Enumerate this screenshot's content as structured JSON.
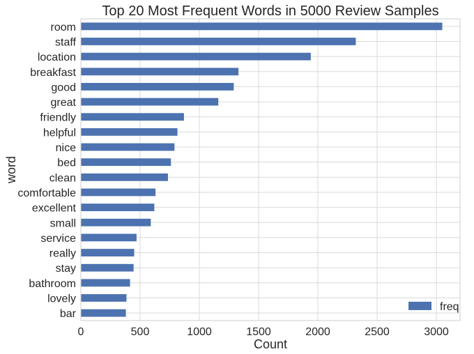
{
  "chart_data": {
    "type": "bar",
    "orientation": "horizontal",
    "title": "Top 20 Most Frequent Words in 5000 Review Samples",
    "xlabel": "Count",
    "ylabel": "word",
    "xlim": [
      0,
      3200
    ],
    "xticks": [
      0,
      500,
      1000,
      1500,
      2000,
      2500,
      3000
    ],
    "grid": true,
    "legend_position": "bottom-right",
    "categories": [
      "room",
      "staff",
      "location",
      "breakfast",
      "good",
      "great",
      "friendly",
      "helpful",
      "nice",
      "bed",
      "clean",
      "comfortable",
      "excellent",
      "small",
      "service",
      "really",
      "stay",
      "bathroom",
      "lovely",
      "bar"
    ],
    "series": [
      {
        "name": "freq",
        "color": "#4c72b0",
        "values": [
          3050,
          2320,
          1940,
          1330,
          1290,
          1160,
          870,
          815,
          790,
          760,
          735,
          630,
          620,
          590,
          470,
          450,
          445,
          415,
          385,
          380
        ]
      }
    ]
  }
}
